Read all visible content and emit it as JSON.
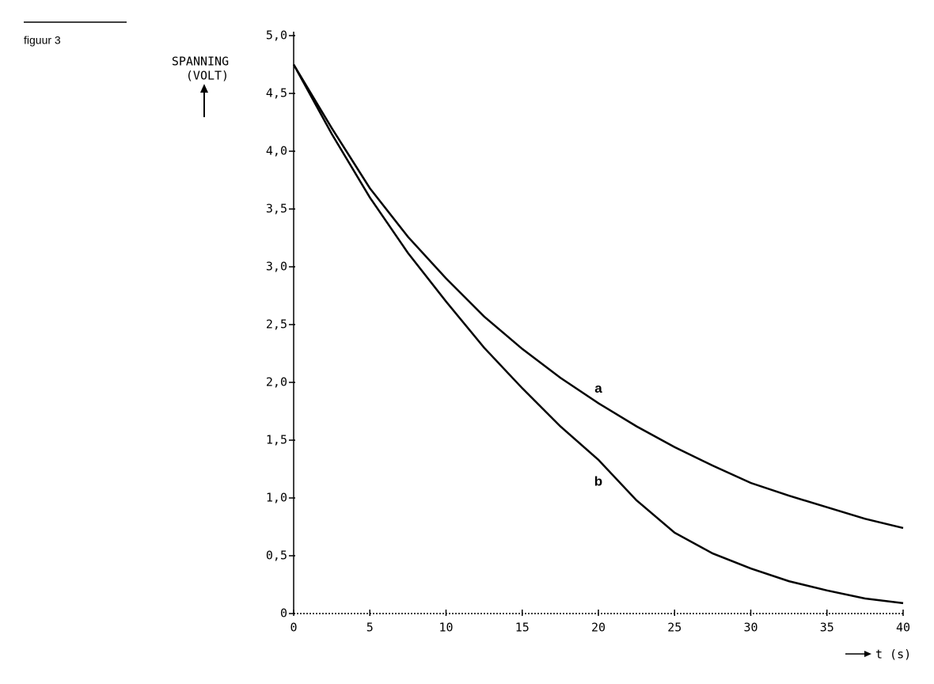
{
  "chart_data": {
    "type": "line",
    "caption": "figuur 3",
    "ylabel": [
      "SPANNING",
      "(VOLT)"
    ],
    "xlabel": "t (s)",
    "x": [
      0,
      2.5,
      5,
      7.5,
      10,
      12.5,
      15,
      17.5,
      20,
      22.5,
      25,
      27.5,
      30,
      32.5,
      35,
      37.5,
      40
    ],
    "series": [
      {
        "name": "a",
        "color": "#000000",
        "values": [
          4.75,
          4.2,
          3.68,
          3.26,
          2.9,
          2.57,
          2.29,
          2.04,
          1.82,
          1.62,
          1.44,
          1.28,
          1.13,
          1.02,
          0.92,
          0.82,
          0.74
        ]
      },
      {
        "name": "b",
        "color": "#000000",
        "values": [
          4.75,
          4.15,
          3.6,
          3.12,
          2.7,
          2.3,
          1.95,
          1.62,
          1.33,
          0.98,
          0.7,
          0.52,
          0.39,
          0.28,
          0.2,
          0.13,
          0.09
        ]
      }
    ],
    "xlim": [
      0,
      40
    ],
    "xticks": [
      0,
      5,
      10,
      15,
      20,
      25,
      30,
      35,
      40
    ],
    "ylim": [
      0,
      5
    ],
    "yticks": [
      0,
      {
        "value": 0.5,
        "label": "0,5"
      },
      {
        "value": 1,
        "label": "1,0"
      },
      {
        "value": 1.5,
        "label": "1,5"
      },
      {
        "value": 2,
        "label": "2,0"
      },
      {
        "value": 2.5,
        "label": "2,5"
      },
      {
        "value": 3,
        "label": "3,0"
      },
      {
        "value": 3.5,
        "label": "3,5"
      },
      {
        "value": 4,
        "label": "4,0"
      },
      {
        "value": 4.5,
        "label": "4,5"
      },
      {
        "value": 5,
        "label": "5,0"
      }
    ],
    "grid": false
  }
}
